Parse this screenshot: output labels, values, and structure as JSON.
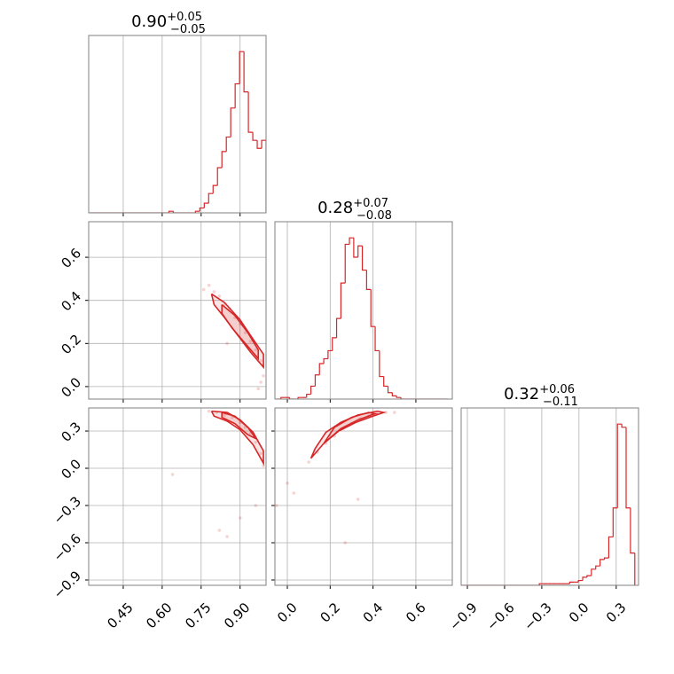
{
  "chart_data": [
    {
      "type": "histogram",
      "title": {
        "value": "0.90",
        "upper": "+0.05",
        "lower": "−0.05"
      },
      "color": "#d62728",
      "grid": true,
      "bins": [
        0.32,
        0.337,
        0.354,
        0.371,
        0.388,
        0.405,
        0.422,
        0.439,
        0.456,
        0.473,
        0.49,
        0.507,
        0.524,
        0.541,
        0.558,
        0.575,
        0.592,
        0.609,
        0.626,
        0.643,
        0.66,
        0.677,
        0.694,
        0.711,
        0.728,
        0.745,
        0.762,
        0.779,
        0.796,
        0.813,
        0.83,
        0.847,
        0.864,
        0.881,
        0.898,
        0.915,
        0.932,
        0.949,
        0.966,
        0.983,
        1.0
      ],
      "values": [
        0,
        0,
        0,
        0,
        0,
        0,
        0,
        0,
        0,
        0,
        0,
        0,
        0,
        0,
        0,
        0,
        0,
        0,
        1,
        0,
        0,
        0,
        0,
        0,
        1,
        3,
        6,
        12,
        17,
        28,
        38,
        47,
        65,
        80,
        100,
        75,
        50,
        45,
        40,
        45
      ],
      "xlim": [
        0.317,
        1.0
      ],
      "ylim": [
        0,
        110
      ],
      "xticks": [
        0.45,
        {
          "value": 0.6,
          "label": "0.60"
        },
        0.75,
        {
          "value": 0.9,
          "label": "0.90"
        }
      ]
    },
    {
      "type": "scatter",
      "color": "#d62728",
      "grid": true,
      "x": [
        0.78,
        0.8,
        0.82,
        0.84,
        0.86,
        0.88,
        0.9,
        0.92,
        0.94,
        0.96,
        0.98,
        0.99,
        0.76,
        0.85,
        0.97,
        0.98
      ],
      "y": [
        0.47,
        0.44,
        0.42,
        0.38,
        0.36,
        0.32,
        0.29,
        0.25,
        0.21,
        0.17,
        0.12,
        0.05,
        0.45,
        0.2,
        -0.01,
        0.02
      ],
      "contours": [
        {
          "x": [
            0.79,
            0.84,
            0.9,
            0.95,
            0.99,
            0.99,
            0.94,
            0.89,
            0.84,
            0.8,
            0.79
          ],
          "y": [
            0.43,
            0.39,
            0.31,
            0.22,
            0.15,
            0.09,
            0.16,
            0.24,
            0.32,
            0.38,
            0.43
          ]
        },
        {
          "x": [
            0.83,
            0.88,
            0.93,
            0.97,
            0.97,
            0.92,
            0.87,
            0.83,
            0.83
          ],
          "y": [
            0.38,
            0.33,
            0.25,
            0.17,
            0.13,
            0.2,
            0.27,
            0.34,
            0.38
          ]
        }
      ],
      "xlim": [
        0.317,
        1.0
      ],
      "ylim": [
        -0.058,
        0.765
      ],
      "xticks": [
        0.45,
        {
          "value": 0.6,
          "label": "0.60"
        },
        0.75,
        {
          "value": 0.9,
          "label": "0.90"
        }
      ],
      "yticks": [
        {
          "value": 0,
          "label": "0.0"
        },
        0.2,
        0.4,
        0.6
      ]
    },
    {
      "type": "histogram",
      "title": {
        "value": "0.28",
        "upper": "+0.07",
        "lower": "−0.08"
      },
      "color": "#d62728",
      "grid": true,
      "bins": [
        -0.05,
        -0.03,
        -0.01,
        0.01,
        0.03,
        0.05,
        0.07,
        0.09,
        0.11,
        0.13,
        0.15,
        0.17,
        0.19,
        0.21,
        0.23,
        0.25,
        0.27,
        0.29,
        0.31,
        0.33,
        0.35,
        0.37,
        0.39,
        0.41,
        0.43,
        0.45,
        0.47,
        0.49,
        0.51,
        0.53,
        0.55,
        0.57,
        0.59,
        0.61,
        0.63,
        0.65,
        0.67,
        0.69,
        0.71,
        0.73,
        0.75
      ],
      "values": [
        0,
        1,
        1,
        0,
        0,
        1,
        1,
        3,
        8,
        15,
        22,
        25,
        30,
        38,
        50,
        72,
        96,
        100,
        88,
        95,
        80,
        68,
        45,
        30,
        14,
        8,
        4,
        2,
        1,
        0,
        0,
        0,
        0,
        0,
        0,
        0,
        0,
        0,
        0,
        0
      ],
      "xlim": [
        -0.058,
        0.77
      ],
      "ylim": [
        0,
        110
      ],
      "xticks": [
        {
          "value": 0,
          "label": "0.0"
        },
        0.2,
        0.4,
        0.6
      ]
    },
    {
      "type": "scatter",
      "color": "#d62728",
      "grid": true,
      "x": [
        0.78,
        0.81,
        0.84,
        0.87,
        0.9,
        0.92,
        0.94,
        0.96,
        0.98,
        0.99,
        0.64,
        0.82,
        0.85,
        0.9,
        0.96
      ],
      "y": [
        0.46,
        0.45,
        0.43,
        0.41,
        0.37,
        0.33,
        0.28,
        0.21,
        0.12,
        0.02,
        -0.05,
        -0.5,
        -0.55,
        -0.4,
        -0.3
      ],
      "contours": [
        {
          "x": [
            0.79,
            0.85,
            0.9,
            0.95,
            0.99,
            0.99,
            0.95,
            0.9,
            0.85,
            0.8,
            0.79
          ],
          "y": [
            0.46,
            0.45,
            0.39,
            0.29,
            0.14,
            0.04,
            0.19,
            0.31,
            0.38,
            0.42,
            0.46
          ]
        },
        {
          "x": [
            0.83,
            0.88,
            0.93,
            0.96,
            0.93,
            0.88,
            0.83,
            0.83
          ],
          "y": [
            0.45,
            0.42,
            0.33,
            0.24,
            0.27,
            0.36,
            0.41,
            0.45
          ]
        }
      ],
      "xlim": [
        0.317,
        1.0
      ],
      "ylim": [
        -0.943,
        0.486
      ],
      "xticks": [
        0.45,
        {
          "value": 0.6,
          "label": "0.60"
        },
        0.75,
        {
          "value": 0.9,
          "label": "0.90"
        }
      ],
      "yticks": [
        {
          "value": -0.9,
          "label": "−0.9"
        },
        {
          "value": -0.6,
          "label": "−0.6"
        },
        {
          "value": -0.3,
          "label": "−0.3"
        },
        {
          "value": 0,
          "label": "0.0"
        },
        0.3
      ]
    },
    {
      "type": "scatter",
      "color": "#d62728",
      "grid": true,
      "x": [
        0.1,
        0.14,
        0.18,
        0.22,
        0.26,
        0.3,
        0.34,
        0.38,
        0.42,
        0.46,
        0.0,
        -0.05,
        0.03,
        0.27,
        0.33,
        0.5
      ],
      "y": [
        0.05,
        0.13,
        0.2,
        0.26,
        0.32,
        0.36,
        0.4,
        0.42,
        0.44,
        0.45,
        -0.12,
        -0.3,
        -0.2,
        -0.6,
        -0.25,
        0.45
      ],
      "contours": [
        {
          "x": [
            0.11,
            0.17,
            0.24,
            0.32,
            0.4,
            0.45,
            0.42,
            0.33,
            0.25,
            0.18,
            0.13,
            0.11
          ],
          "y": [
            0.08,
            0.2,
            0.3,
            0.37,
            0.42,
            0.45,
            0.46,
            0.43,
            0.37,
            0.29,
            0.16,
            0.08
          ]
        },
        {
          "x": [
            0.17,
            0.25,
            0.33,
            0.41,
            0.38,
            0.3,
            0.22,
            0.17
          ],
          "y": [
            0.2,
            0.32,
            0.39,
            0.44,
            0.45,
            0.41,
            0.33,
            0.2
          ]
        }
      ],
      "xlim": [
        -0.058,
        0.77
      ],
      "ylim": [
        -0.943,
        0.486
      ],
      "xticks": [
        {
          "value": 0,
          "label": "0.0"
        },
        0.2,
        0.4,
        0.6
      ],
      "yticks": [
        {
          "value": -0.9,
          "label": "−0.9"
        },
        {
          "value": -0.6,
          "label": "−0.6"
        },
        {
          "value": -0.3,
          "label": "−0.3"
        },
        {
          "value": 0,
          "label": "0.0"
        },
        0.3
      ]
    },
    {
      "type": "histogram",
      "title": {
        "value": "0.32",
        "upper": "+0.06",
        "lower": "−0.11"
      },
      "color": "#d62728",
      "grid": true,
      "bins": [
        -0.95,
        -0.915,
        -0.88,
        -0.845,
        -0.81,
        -0.775,
        -0.74,
        -0.705,
        -0.67,
        -0.635,
        -0.6,
        -0.565,
        -0.53,
        -0.495,
        -0.46,
        -0.425,
        -0.39,
        -0.355,
        -0.32,
        -0.285,
        -0.25,
        -0.215,
        -0.18,
        -0.145,
        -0.11,
        -0.075,
        -0.04,
        -0.005,
        0.03,
        0.065,
        0.1,
        0.135,
        0.17,
        0.205,
        0.24,
        0.275,
        0.31,
        0.345,
        0.38,
        0.415,
        0.45
      ],
      "values": [
        0,
        0,
        0,
        0,
        0,
        0,
        0,
        0,
        0,
        0,
        0,
        0,
        0,
        0,
        0,
        0,
        0,
        0,
        1,
        1,
        1,
        1,
        1,
        1,
        1,
        2,
        2,
        3,
        5,
        6,
        10,
        12,
        16,
        17,
        30,
        48,
        100,
        98,
        48,
        20
      ],
      "xlim": [
        -0.95,
        0.48
      ],
      "ylim": [
        0,
        110
      ],
      "xticks": [
        {
          "value": -0.9,
          "label": "−0.9"
        },
        {
          "value": -0.6,
          "label": "−0.6"
        },
        {
          "value": -0.3,
          "label": "−0.3"
        },
        {
          "value": 0,
          "label": "0.0"
        },
        0.3
      ]
    }
  ]
}
